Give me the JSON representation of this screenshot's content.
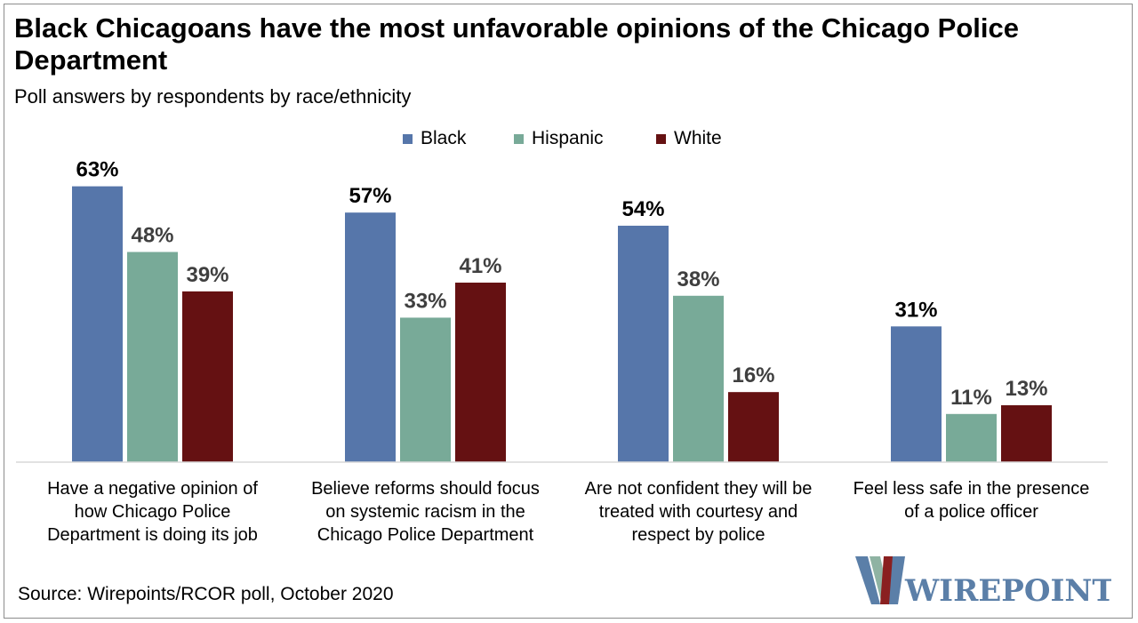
{
  "title": "Black Chicagoans have the most unfavorable opinions of the Chicago Police Department",
  "subtitle": "Poll answers by respondents by race/ethnicity",
  "source": "Source: Wirepoints/RCOR poll, October 2020",
  "logo": {
    "text": "WIREPOINTS",
    "colors": [
      "#5b7fa8",
      "#8fb3a3",
      "#8a2020"
    ]
  },
  "chart_data": {
    "type": "bar",
    "categories": [
      [
        "Have a negative opinion of",
        "how Chicago Police",
        "Department is doing its job"
      ],
      [
        "Believe reforms should focus",
        "on systemic racism in the",
        "Chicago Police Department"
      ],
      [
        "Are not confident they will be",
        "treated with courtesy and",
        "respect by police"
      ],
      [
        "Feel less safe in the presence",
        "of a police officer"
      ]
    ],
    "series": [
      {
        "name": "Black",
        "color": "#5676aa",
        "values": [
          63,
          57,
          54,
          31
        ],
        "labels": [
          "63%",
          "57%",
          "54%",
          "31%"
        ]
      },
      {
        "name": "Hispanic",
        "color": "#78aa98",
        "values": [
          48,
          33,
          38,
          11
        ],
        "labels": [
          "48%",
          "33%",
          "38%",
          "11%"
        ]
      },
      {
        "name": "White",
        "color": "#651112",
        "values": [
          39,
          41,
          16,
          13
        ],
        "labels": [
          "39%",
          "41%",
          "16%",
          "13%"
        ]
      }
    ],
    "ylim": [
      0,
      68
    ],
    "legend_position": "top-center",
    "grid": false
  }
}
